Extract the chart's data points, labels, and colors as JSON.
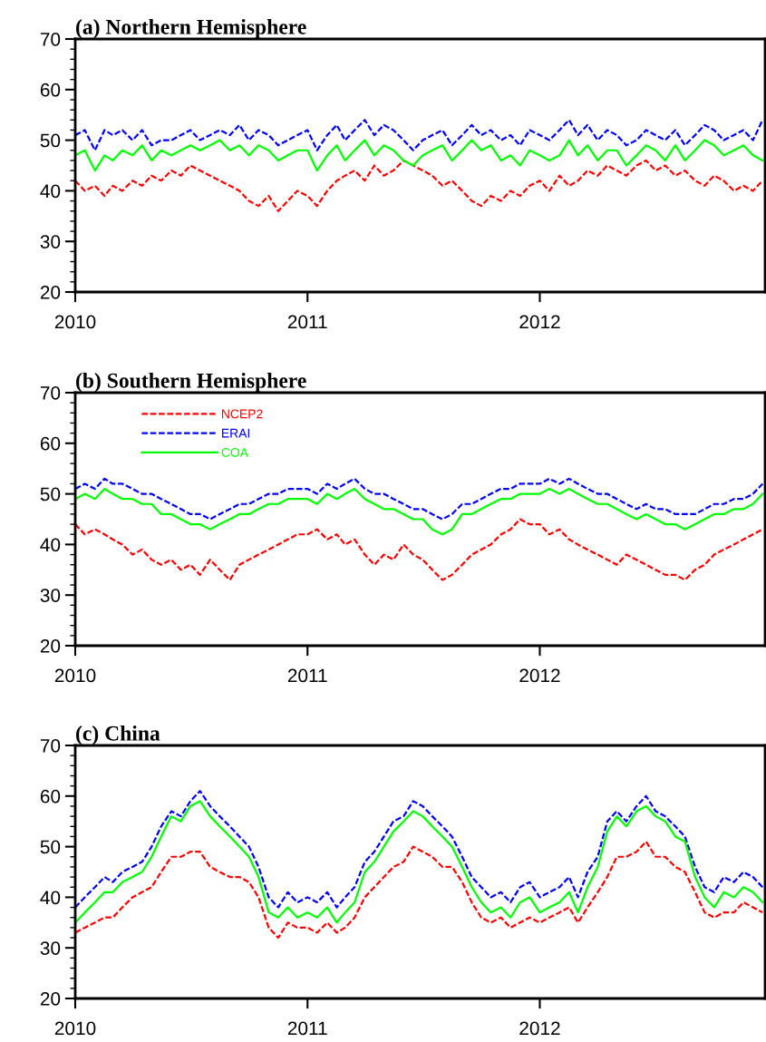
{
  "chart_data": [
    {
      "type": "line",
      "title": "(a) Northern Hemisphere",
      "xlim": [
        "2010-01-01",
        "2012-12-20"
      ],
      "xticks": [
        {
          "value": "2010-01-01",
          "label": "2010"
        },
        {
          "value": "2011-01-01",
          "label": "2011"
        },
        {
          "value": "2012-01-01",
          "label": "2012"
        }
      ],
      "ylim": [
        20,
        70
      ],
      "yticks": [
        20,
        30,
        40,
        50,
        60,
        70
      ],
      "grid": false,
      "legend": false,
      "x": [
        "2010-01-01",
        "2010-01-16",
        "2010-02-01",
        "2010-02-16",
        "2010-03-01",
        "2010-03-16",
        "2010-04-01",
        "2010-04-16",
        "2010-05-01",
        "2010-05-16",
        "2010-06-01",
        "2010-06-16",
        "2010-07-01",
        "2010-07-16",
        "2010-08-01",
        "2010-08-16",
        "2010-09-01",
        "2010-09-16",
        "2010-10-01",
        "2010-10-16",
        "2010-11-01",
        "2010-11-16",
        "2010-12-01",
        "2010-12-16",
        "2011-01-01",
        "2011-01-16",
        "2011-02-01",
        "2011-02-16",
        "2011-03-01",
        "2011-03-16",
        "2011-04-01",
        "2011-04-16",
        "2011-05-01",
        "2011-05-16",
        "2011-06-01",
        "2011-06-16",
        "2011-07-01",
        "2011-07-16",
        "2011-08-01",
        "2011-08-16",
        "2011-09-01",
        "2011-09-16",
        "2011-10-01",
        "2011-10-16",
        "2011-11-01",
        "2011-11-16",
        "2011-12-01",
        "2011-12-16",
        "2012-01-01",
        "2012-01-16",
        "2012-02-01",
        "2012-02-16",
        "2012-03-01",
        "2012-03-16",
        "2012-04-01",
        "2012-04-16",
        "2012-05-01",
        "2012-05-16",
        "2012-06-01",
        "2012-06-16",
        "2012-07-01",
        "2012-07-16",
        "2012-08-01",
        "2012-08-16",
        "2012-09-01",
        "2012-09-16",
        "2012-10-01",
        "2012-10-16",
        "2012-11-01",
        "2012-11-16",
        "2012-12-01",
        "2012-12-16"
      ],
      "series": [
        {
          "color": "#ff0000",
          "line_style": "dashed",
          "values": [
            42,
            40,
            41,
            39,
            41,
            40,
            42,
            41,
            43,
            42,
            44,
            43,
            45,
            44,
            43,
            42,
            41,
            40,
            38,
            37,
            39,
            36,
            38,
            40,
            39,
            37,
            40,
            42,
            43,
            44,
            42,
            45,
            43,
            44,
            46,
            45,
            44,
            43,
            41,
            42,
            40,
            38,
            37,
            39,
            38,
            40,
            39,
            41,
            42,
            40,
            43,
            41,
            42,
            44,
            43,
            45,
            44,
            43,
            45,
            46,
            44,
            45,
            43,
            44,
            42,
            41,
            43,
            42,
            40,
            41,
            40,
            42
          ]
        },
        {
          "color": "#0000ff",
          "line_style": "dashed",
          "values": [
            51,
            52,
            48,
            52,
            51,
            52,
            50,
            52,
            49,
            50,
            50,
            51,
            52,
            50,
            51,
            52,
            51,
            53,
            50,
            52,
            51,
            49,
            50,
            51,
            52,
            48,
            51,
            53,
            50,
            52,
            54,
            51,
            53,
            52,
            50,
            48,
            50,
            51,
            52,
            49,
            51,
            53,
            51,
            52,
            50,
            51,
            49,
            52,
            51,
            50,
            52,
            54,
            51,
            53,
            50,
            52,
            51,
            49,
            50,
            52,
            51,
            50,
            52,
            49,
            51,
            53,
            52,
            50,
            51,
            52,
            50,
            54
          ]
        },
        {
          "color": "#00ff00",
          "line_style": "solid",
          "values": [
            47,
            48,
            44,
            47,
            46,
            48,
            47,
            49,
            46,
            48,
            47,
            48,
            49,
            48,
            49,
            50,
            48,
            49,
            47,
            49,
            48,
            46,
            47,
            48,
            48,
            44,
            47,
            49,
            46,
            48,
            50,
            47,
            49,
            48,
            46,
            45,
            47,
            48,
            49,
            46,
            48,
            50,
            48,
            49,
            46,
            47,
            45,
            48,
            47,
            46,
            47,
            50,
            47,
            49,
            46,
            48,
            48,
            45,
            47,
            49,
            48,
            46,
            49,
            46,
            48,
            50,
            49,
            47,
            48,
            49,
            47,
            46
          ]
        }
      ]
    },
    {
      "type": "line",
      "title": "(b) Southern Hemisphere",
      "xlim": [
        "2010-01-01",
        "2012-12-20"
      ],
      "xticks": [
        {
          "value": "2010-01-01",
          "label": "2010"
        },
        {
          "value": "2011-01-01",
          "label": "2011"
        },
        {
          "value": "2012-01-01",
          "label": "2012"
        }
      ],
      "ylim": [
        20,
        70
      ],
      "yticks": [
        20,
        30,
        40,
        50,
        60,
        70
      ],
      "grid": false,
      "legend": "top left",
      "x": [
        "2010-01-01",
        "2010-01-16",
        "2010-02-01",
        "2010-02-16",
        "2010-03-01",
        "2010-03-16",
        "2010-04-01",
        "2010-04-16",
        "2010-05-01",
        "2010-05-16",
        "2010-06-01",
        "2010-06-16",
        "2010-07-01",
        "2010-07-16",
        "2010-08-01",
        "2010-08-16",
        "2010-09-01",
        "2010-09-16",
        "2010-10-01",
        "2010-10-16",
        "2010-11-01",
        "2010-11-16",
        "2010-12-01",
        "2010-12-16",
        "2011-01-01",
        "2011-01-16",
        "2011-02-01",
        "2011-02-16",
        "2011-03-01",
        "2011-03-16",
        "2011-04-01",
        "2011-04-16",
        "2011-05-01",
        "2011-05-16",
        "2011-06-01",
        "2011-06-16",
        "2011-07-01",
        "2011-07-16",
        "2011-08-01",
        "2011-08-16",
        "2011-09-01",
        "2011-09-16",
        "2011-10-01",
        "2011-10-16",
        "2011-11-01",
        "2011-11-16",
        "2011-12-01",
        "2011-12-16",
        "2012-01-01",
        "2012-01-16",
        "2012-02-01",
        "2012-02-16",
        "2012-03-01",
        "2012-03-16",
        "2012-04-01",
        "2012-04-16",
        "2012-05-01",
        "2012-05-16",
        "2012-06-01",
        "2012-06-16",
        "2012-07-01",
        "2012-07-16",
        "2012-08-01",
        "2012-08-16",
        "2012-09-01",
        "2012-09-16",
        "2012-10-01",
        "2012-10-16",
        "2012-11-01",
        "2012-11-16",
        "2012-12-01",
        "2012-12-16"
      ],
      "series": [
        {
          "name": "NCEP2",
          "color": "#ff0000",
          "line_style": "dashed",
          "values": [
            44,
            42,
            43,
            42,
            41,
            40,
            38,
            39,
            37,
            36,
            37,
            35,
            36,
            34,
            37,
            35,
            33,
            36,
            37,
            38,
            39,
            40,
            41,
            42,
            42,
            43,
            41,
            42,
            40,
            41,
            38,
            36,
            38,
            37,
            40,
            38,
            37,
            35,
            33,
            34,
            36,
            38,
            39,
            40,
            42,
            43,
            45,
            44,
            44,
            42,
            43,
            41,
            40,
            39,
            38,
            37,
            36,
            38,
            37,
            36,
            35,
            34,
            34,
            33,
            35,
            36,
            38,
            39,
            40,
            41,
            42,
            43
          ]
        },
        {
          "name": "ERAI",
          "color": "#0000ff",
          "line_style": "dashed",
          "values": [
            51,
            52,
            51,
            53,
            52,
            52,
            51,
            50,
            50,
            49,
            48,
            47,
            46,
            46,
            45,
            46,
            47,
            48,
            48,
            49,
            50,
            50,
            51,
            51,
            51,
            50,
            52,
            51,
            52,
            53,
            51,
            50,
            50,
            49,
            48,
            47,
            47,
            46,
            45,
            46,
            48,
            48,
            49,
            50,
            51,
            51,
            52,
            52,
            52,
            53,
            52,
            53,
            52,
            51,
            50,
            50,
            49,
            48,
            47,
            48,
            47,
            47,
            46,
            46,
            46,
            47,
            48,
            48,
            49,
            49,
            50,
            52
          ]
        },
        {
          "name": "COA",
          "color": "#00ff00",
          "line_style": "solid",
          "values": [
            49,
            50,
            49,
            51,
            50,
            49,
            49,
            48,
            48,
            46,
            46,
            45,
            44,
            44,
            43,
            44,
            45,
            46,
            46,
            47,
            48,
            48,
            49,
            49,
            49,
            48,
            50,
            49,
            50,
            51,
            49,
            48,
            47,
            47,
            46,
            45,
            45,
            43,
            42,
            43,
            46,
            46,
            47,
            48,
            49,
            49,
            50,
            50,
            50,
            51,
            50,
            51,
            50,
            49,
            48,
            48,
            47,
            46,
            45,
            46,
            45,
            44,
            44,
            43,
            44,
            45,
            46,
            46,
            47,
            47,
            48,
            50
          ]
        }
      ]
    },
    {
      "type": "line",
      "title": "(c) China",
      "xlim": [
        "2010-01-01",
        "2012-12-20"
      ],
      "xticks": [
        {
          "value": "2010-01-01",
          "label": "2010"
        },
        {
          "value": "2011-01-01",
          "label": "2011"
        },
        {
          "value": "2012-01-01",
          "label": "2012"
        }
      ],
      "ylim": [
        20,
        70
      ],
      "yticks": [
        20,
        30,
        40,
        50,
        60,
        70
      ],
      "grid": false,
      "legend": false,
      "x": [
        "2010-01-01",
        "2010-01-16",
        "2010-02-01",
        "2010-02-16",
        "2010-03-01",
        "2010-03-16",
        "2010-04-01",
        "2010-04-16",
        "2010-05-01",
        "2010-05-16",
        "2010-06-01",
        "2010-06-16",
        "2010-07-01",
        "2010-07-16",
        "2010-08-01",
        "2010-08-16",
        "2010-09-01",
        "2010-09-16",
        "2010-10-01",
        "2010-10-16",
        "2010-11-01",
        "2010-11-16",
        "2010-12-01",
        "2010-12-16",
        "2011-01-01",
        "2011-01-16",
        "2011-02-01",
        "2011-02-16",
        "2011-03-01",
        "2011-03-16",
        "2011-04-01",
        "2011-04-16",
        "2011-05-01",
        "2011-05-16",
        "2011-06-01",
        "2011-06-16",
        "2011-07-01",
        "2011-07-16",
        "2011-08-01",
        "2011-08-16",
        "2011-09-01",
        "2011-09-16",
        "2011-10-01",
        "2011-10-16",
        "2011-11-01",
        "2011-11-16",
        "2011-12-01",
        "2011-12-16",
        "2012-01-01",
        "2012-01-16",
        "2012-02-01",
        "2012-02-16",
        "2012-03-01",
        "2012-03-16",
        "2012-04-01",
        "2012-04-16",
        "2012-05-01",
        "2012-05-16",
        "2012-06-01",
        "2012-06-16",
        "2012-07-01",
        "2012-07-16",
        "2012-08-01",
        "2012-08-16",
        "2012-09-01",
        "2012-09-16",
        "2012-10-01",
        "2012-10-16",
        "2012-11-01",
        "2012-11-16",
        "2012-12-01",
        "2012-12-16"
      ],
      "series": [
        {
          "color": "#ff0000",
          "line_style": "dashed",
          "values": [
            33,
            34,
            35,
            36,
            36,
            38,
            40,
            41,
            42,
            45,
            48,
            48,
            49,
            49,
            46,
            45,
            44,
            44,
            43,
            40,
            34,
            32,
            35,
            34,
            34,
            33,
            35,
            33,
            34,
            36,
            40,
            42,
            44,
            46,
            47,
            50,
            49,
            48,
            46,
            46,
            43,
            39,
            36,
            35,
            36,
            34,
            35,
            36,
            35,
            36,
            37,
            38,
            35,
            38,
            41,
            44,
            48,
            48,
            49,
            51,
            48,
            48,
            46,
            45,
            41,
            37,
            36,
            37,
            37,
            39,
            38,
            37
          ]
        },
        {
          "color": "#0000ff",
          "line_style": "dashed",
          "values": [
            38,
            40,
            42,
            44,
            43,
            45,
            46,
            47,
            50,
            54,
            57,
            56,
            59,
            61,
            58,
            56,
            54,
            52,
            50,
            46,
            40,
            38,
            41,
            39,
            40,
            39,
            41,
            38,
            40,
            42,
            47,
            49,
            52,
            55,
            56,
            59,
            58,
            56,
            54,
            52,
            48,
            44,
            42,
            40,
            41,
            39,
            42,
            43,
            40,
            41,
            42,
            44,
            40,
            45,
            48,
            55,
            57,
            55,
            58,
            60,
            57,
            56,
            54,
            52,
            46,
            42,
            41,
            44,
            43,
            45,
            44,
            42
          ]
        },
        {
          "color": "#00ff00",
          "line_style": "solid",
          "values": [
            35,
            37,
            39,
            41,
            41,
            43,
            44,
            45,
            48,
            52,
            56,
            55,
            58,
            59,
            56,
            54,
            52,
            50,
            48,
            44,
            37,
            36,
            38,
            36,
            37,
            36,
            38,
            35,
            37,
            39,
            45,
            47,
            50,
            53,
            55,
            57,
            56,
            54,
            52,
            50,
            46,
            42,
            39,
            37,
            38,
            36,
            39,
            40,
            37,
            38,
            39,
            41,
            37,
            42,
            46,
            53,
            56,
            54,
            57,
            58,
            56,
            55,
            52,
            51,
            44,
            40,
            38,
            41,
            40,
            42,
            41,
            39
          ]
        }
      ]
    }
  ]
}
